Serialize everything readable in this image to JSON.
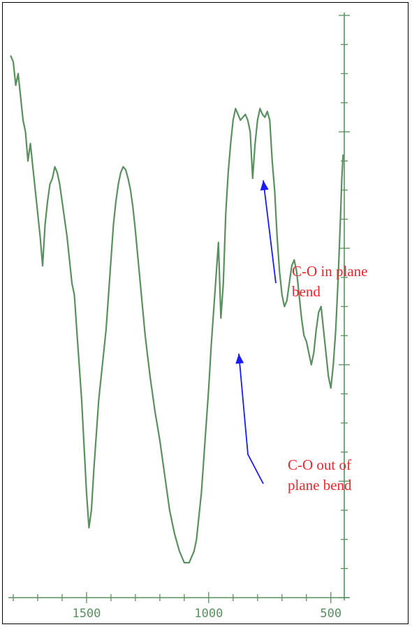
{
  "chart_data": {
    "type": "line",
    "title": "",
    "xlabel": "",
    "ylabel": "",
    "x_reversed": true,
    "xlim": [
      1820,
      445
    ],
    "ylim": [
      0,
      100
    ],
    "x_ticks": [
      1500,
      1000,
      500
    ],
    "y_axis_labels_shown": false,
    "grid": false,
    "colors": {
      "spectrum": "#5a8f5f",
      "axis": "#5a8f5f",
      "arrow": "#1a1aff",
      "annotation": "#e8282e"
    },
    "series": [
      {
        "x": [
          1810,
          1800,
          1790,
          1780,
          1770,
          1760,
          1750,
          1740,
          1730,
          1720,
          1710,
          1700,
          1690,
          1680,
          1670,
          1660,
          1650,
          1640,
          1630,
          1620,
          1610,
          1600,
          1590,
          1580,
          1570,
          1560,
          1550,
          1540,
          1530,
          1520,
          1510,
          1500,
          1490,
          1480,
          1470,
          1460,
          1450,
          1440,
          1430,
          1420,
          1410,
          1400,
          1390,
          1380,
          1370,
          1360,
          1350,
          1340,
          1330,
          1320,
          1310,
          1300,
          1280,
          1260,
          1240,
          1220,
          1200,
          1180,
          1160,
          1140,
          1120,
          1100,
          1080,
          1070,
          1060,
          1050,
          1040,
          1030,
          1020,
          1010,
          1000,
          990,
          980,
          970,
          960,
          950,
          940,
          930,
          920,
          910,
          900,
          890,
          880,
          870,
          860,
          850,
          840,
          830,
          820,
          810,
          800,
          790,
          780,
          770,
          760,
          750,
          740,
          730,
          720,
          710,
          700,
          690,
          680,
          670,
          660,
          650,
          640,
          630,
          620,
          610,
          600,
          590,
          580,
          570,
          560,
          550,
          540,
          530,
          520,
          510,
          500,
          490,
          480,
          470,
          460,
          455,
          450
        ],
        "y": [
          93,
          92,
          88,
          90,
          86,
          82,
          80,
          75,
          78,
          74,
          70,
          66,
          62,
          57,
          64,
          68,
          71,
          72,
          74,
          73,
          71,
          68,
          65,
          62,
          58,
          54,
          52,
          46,
          40,
          34,
          26,
          18,
          12,
          15,
          22,
          28,
          34,
          38,
          42,
          46,
          52,
          58,
          64,
          68,
          71,
          73,
          74,
          73.5,
          72,
          70,
          67,
          63,
          54,
          45,
          38,
          32,
          27,
          21,
          15,
          11,
          8,
          6,
          6,
          7,
          8,
          10,
          14,
          18,
          24,
          30,
          36,
          43,
          49,
          55,
          61,
          48,
          54,
          66,
          73,
          78,
          82,
          84,
          83,
          82,
          82.5,
          83,
          82,
          80,
          72,
          78,
          82,
          84,
          83,
          82.5,
          83.5,
          82,
          75,
          70,
          62,
          56,
          52,
          50,
          51,
          54,
          57,
          58,
          56,
          52,
          48,
          45,
          44,
          42,
          40,
          42,
          46,
          49,
          50,
          46,
          42,
          38,
          36,
          40,
          46,
          55,
          66,
          72,
          76
        ]
      }
    ],
    "annotations": [
      {
        "lines": [
          "C-O in plane",
          "bend"
        ],
        "x": 783
      },
      {
        "lines": [
          "C-O  out  of",
          "plane bend"
        ],
        "x": 885
      }
    ]
  }
}
